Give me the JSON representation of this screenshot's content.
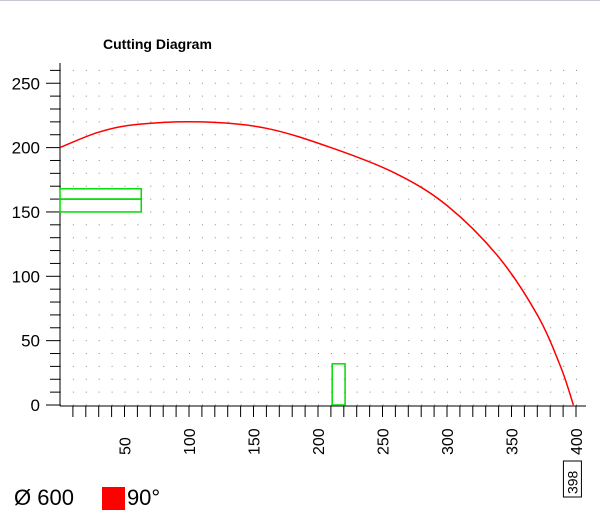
{
  "chart_data": {
    "type": "diagram",
    "title": "Cutting Diagram",
    "xlim": [
      -10,
      410
    ],
    "ylim": [
      -10,
      265
    ],
    "x_ticks": [
      50,
      100,
      150,
      200,
      250,
      300,
      350,
      400
    ],
    "y_ticks": [
      0,
      50,
      100,
      150,
      200,
      250
    ],
    "x_minor_step": 10,
    "y_minor_step": 10,
    "grid": "dotted",
    "arc": {
      "color": "#ff0000",
      "points": [
        [
          0,
          200
        ],
        [
          30,
          212
        ],
        [
          60,
          218
        ],
        [
          110,
          220
        ],
        [
          160,
          215
        ],
        [
          210,
          200
        ],
        [
          260,
          180
        ],
        [
          300,
          155
        ],
        [
          340,
          115
        ],
        [
          370,
          70
        ],
        [
          388,
          30
        ],
        [
          398,
          0
        ]
      ]
    },
    "pieces": [
      {
        "x": 0,
        "y": 150,
        "width": 63,
        "height": 10,
        "color": "#00dd00"
      },
      {
        "x": 0,
        "y": 160,
        "width": 63,
        "height": 8,
        "color": "#00dd00"
      },
      {
        "x": 211,
        "y": 0,
        "width": 10,
        "height": 32,
        "color": "#00dd00"
      }
    ],
    "end_marker": {
      "x": 398,
      "label": "398"
    }
  },
  "legend": {
    "diameter_label": "Ø 600",
    "angle_label": "90°",
    "angle_color": "#ff0000"
  }
}
